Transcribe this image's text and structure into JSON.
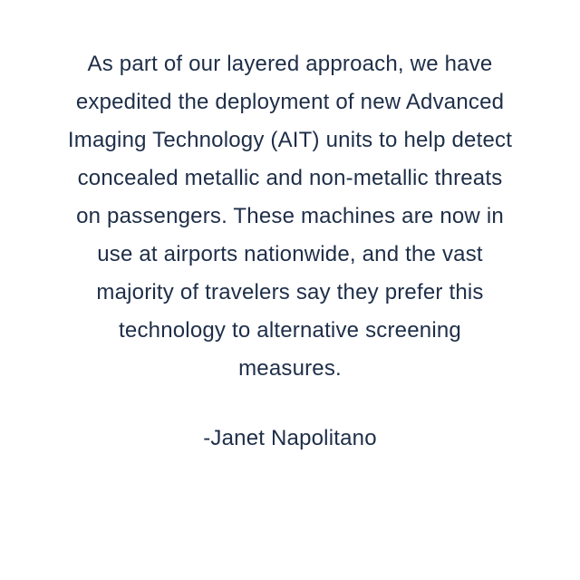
{
  "quote": {
    "text": "As part of our layered approach, we have expedited the deployment of new Advanced Imaging Technology (AIT) units to help detect concealed metallic and non-metallic threats on passengers. These machines are now in use at airports nationwide, and the vast majority of travelers say they prefer this technology to alternative screening measures.",
    "attribution": "-Janet Napolitano",
    "text_color": "#1e2e48",
    "background_color": "#ffffff",
    "font_size": 24,
    "line_height": 1.75,
    "text_align": "center"
  }
}
